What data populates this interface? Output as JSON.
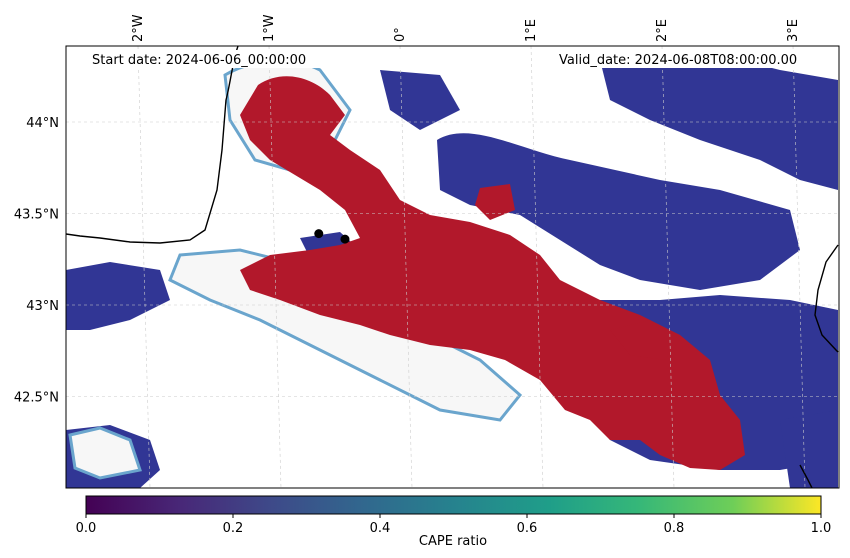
{
  "map": {
    "start_label": "Start date: 2024-06-06_00:00:00",
    "valid_label": "Valid_date: 2024-06-08T08:00:00.00",
    "lon_ticks": [
      {
        "value": -2,
        "label": "2°W"
      },
      {
        "value": -1,
        "label": "1°W"
      },
      {
        "value": 0,
        "label": "0°"
      },
      {
        "value": 1,
        "label": "1°E"
      },
      {
        "value": 2,
        "label": "2°E"
      },
      {
        "value": 3,
        "label": "3°E"
      }
    ],
    "lat_ticks": [
      {
        "value": 44,
        "label": "44°N"
      },
      {
        "value": 43.5,
        "label": "43.5°N"
      },
      {
        "value": 43,
        "label": "43°N"
      },
      {
        "value": 42.5,
        "label": "42.5°N"
      }
    ],
    "stations": [
      {
        "lon": -0.62,
        "lat": 43.39
      },
      {
        "lon": -0.42,
        "lat": 43.36
      }
    ],
    "colors": {
      "high": "#b2182b",
      "low": "#313695",
      "mid": "#f7f7f7",
      "coast": "#000000",
      "grid": "#cccccc"
    }
  },
  "colorbar": {
    "label": "CAPE ratio",
    "ticks": [
      {
        "value": 0,
        "label": "0.0"
      },
      {
        "value": 0.2,
        "label": "0.2"
      },
      {
        "value": 0.4,
        "label": "0.4"
      },
      {
        "value": 0.6,
        "label": "0.6"
      },
      {
        "value": 0.8,
        "label": "0.8"
      },
      {
        "value": 1,
        "label": "1.0"
      }
    ],
    "colormap": "viridis"
  }
}
